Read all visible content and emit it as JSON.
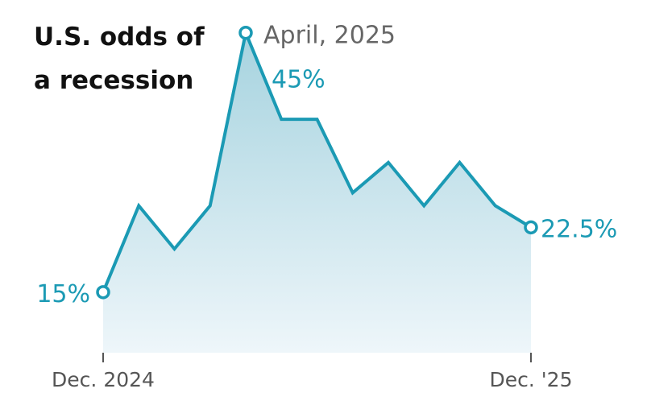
{
  "chart_data": {
    "type": "line",
    "title": [
      "U.S. odds of",
      "a recession"
    ],
    "peak_label": "April, 2025",
    "categories": [
      "Dec. 2024",
      null,
      null,
      null,
      null,
      null,
      null,
      null,
      null,
      null,
      null,
      null,
      "Dec. '25"
    ],
    "values": [
      15,
      25,
      20,
      25,
      45,
      35,
      35,
      26.5,
      30,
      25,
      30,
      25,
      22.5
    ],
    "value_labels": [
      "15%",
      null,
      null,
      null,
      "45%",
      null,
      null,
      null,
      null,
      null,
      null,
      null,
      "22.5%"
    ],
    "ylim": [
      8,
      46
    ],
    "color": "#1b9ab4",
    "area": true
  }
}
